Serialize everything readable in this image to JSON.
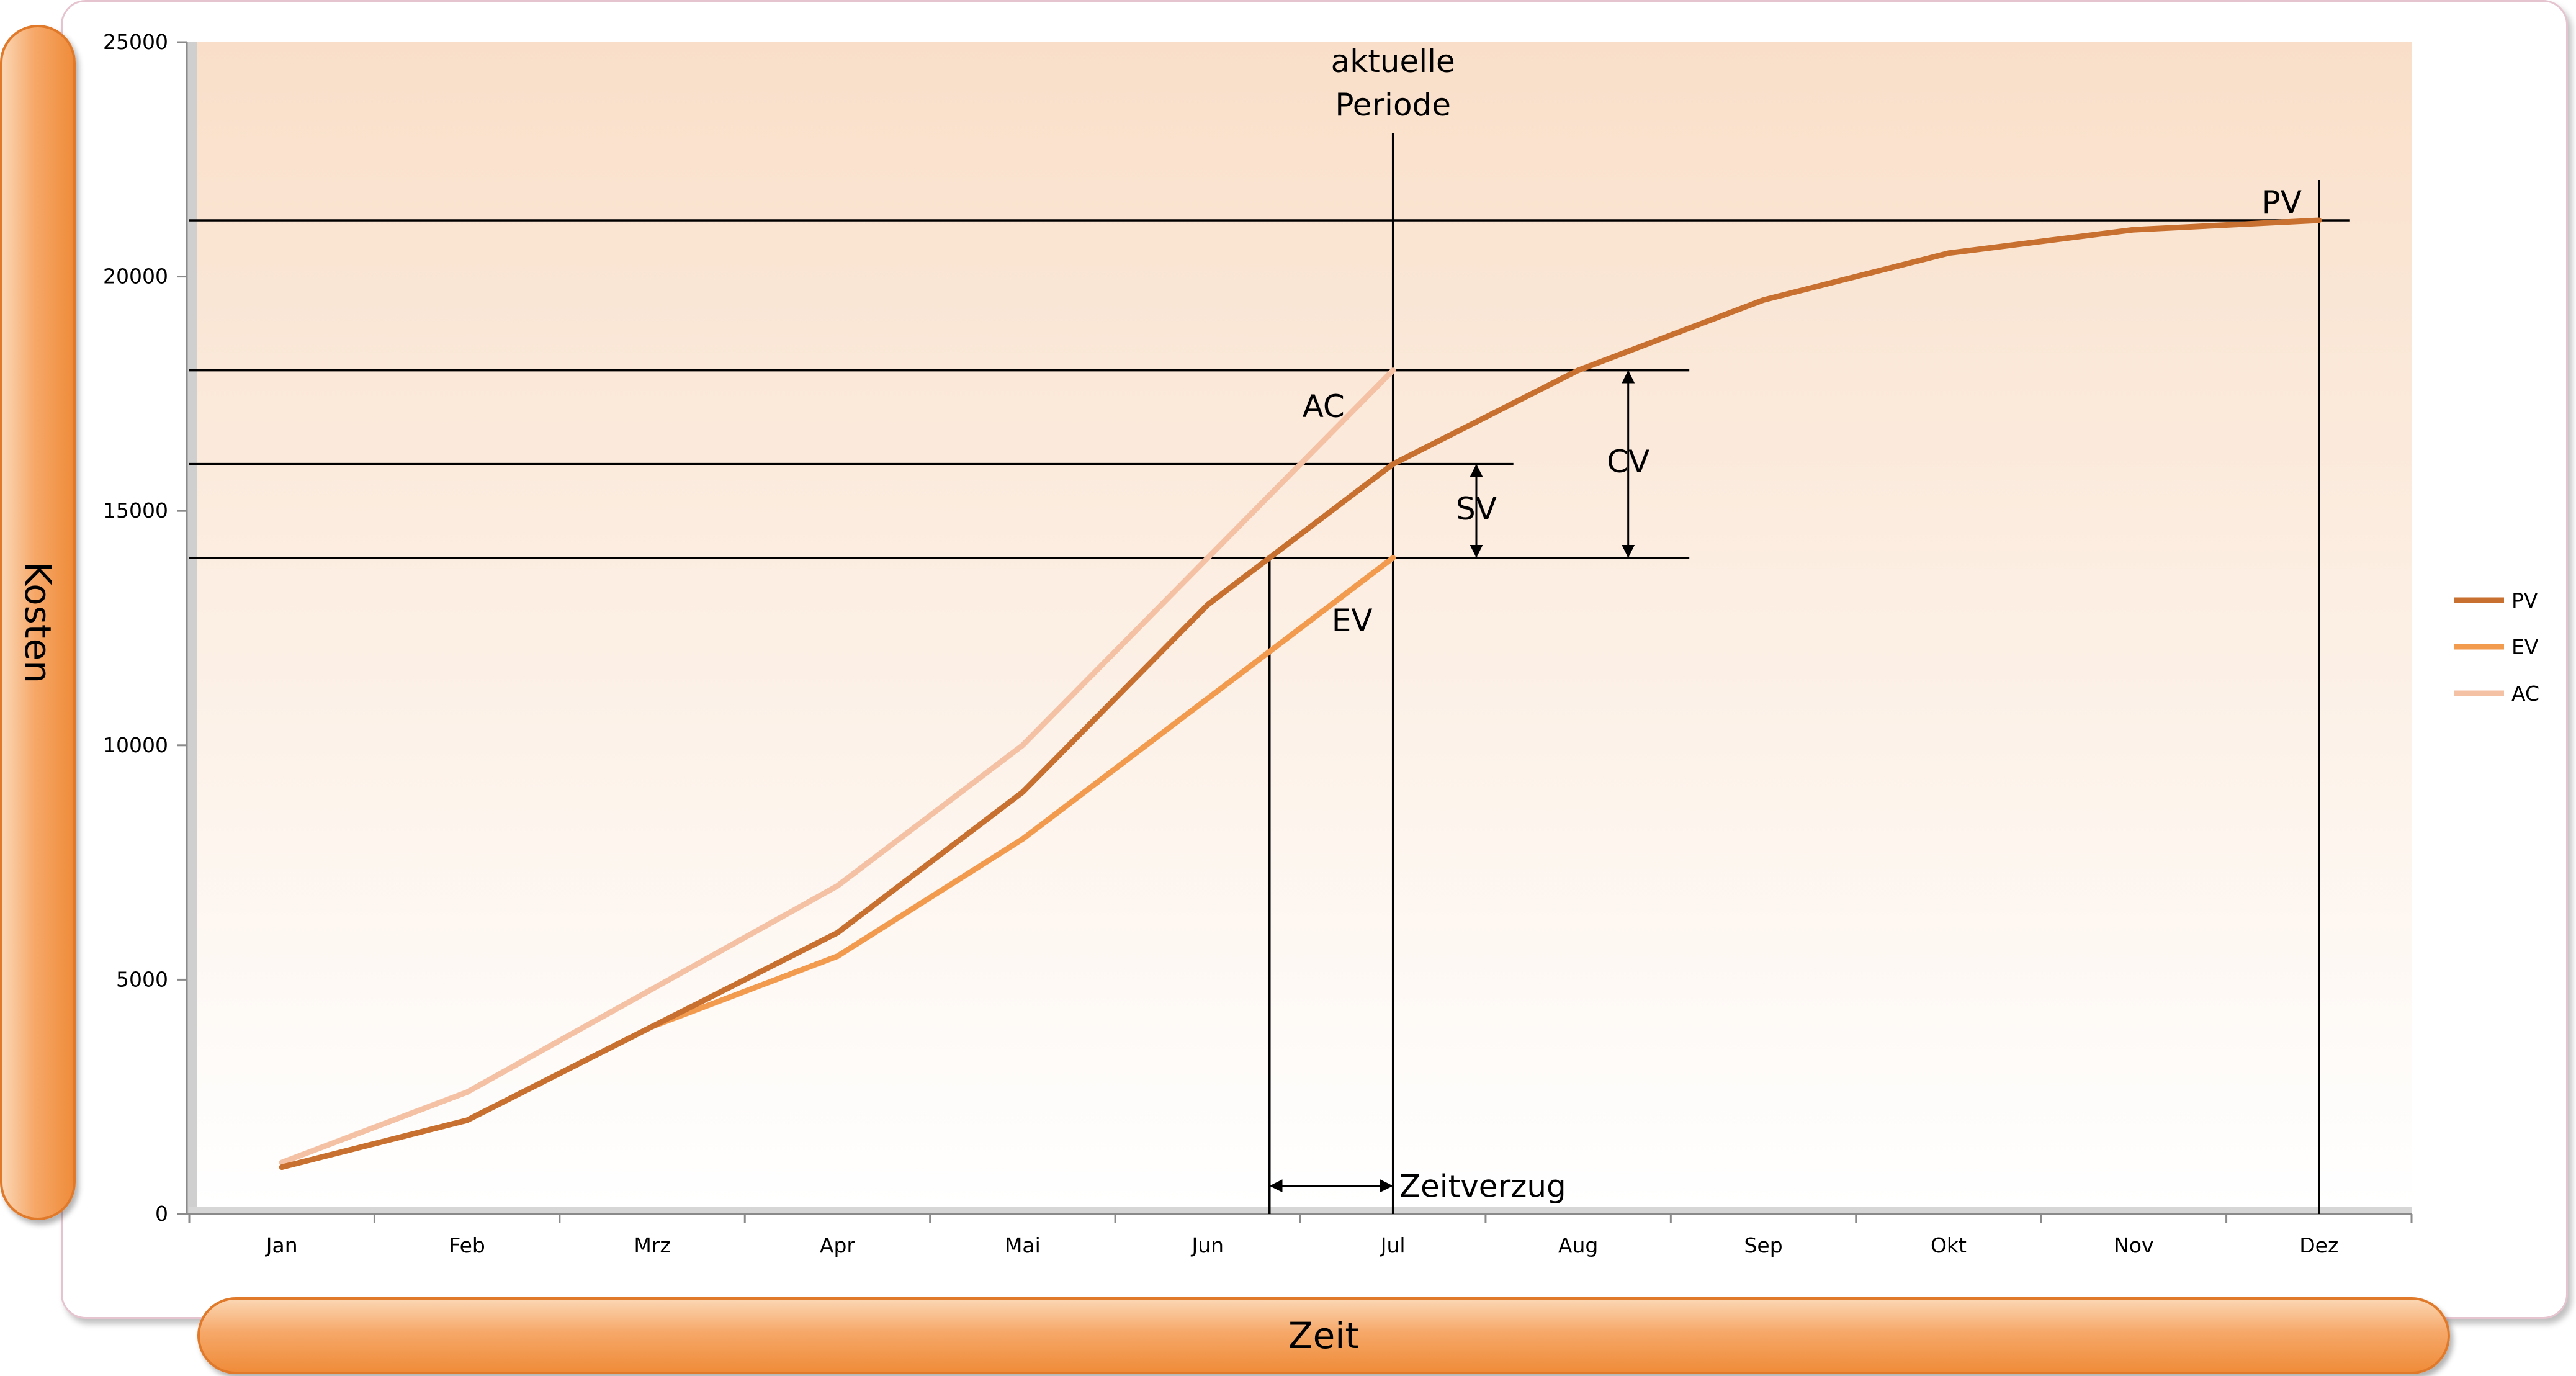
{
  "chart_data": {
    "type": "line",
    "categories": [
      "Jan",
      "Feb",
      "Mrz",
      "Apr",
      "Mai",
      "Jun",
      "Jul",
      "Aug",
      "Sep",
      "Okt",
      "Nov",
      "Dez"
    ],
    "series": [
      {
        "name": "PV",
        "color": "#c8702f",
        "values": [
          1000,
          2000,
          4000,
          6000,
          9000,
          13000,
          16000,
          18000,
          19500,
          20500,
          21000,
          21200
        ]
      },
      {
        "name": "EV",
        "color": "#f29a4e",
        "values": [
          1000,
          2000,
          4000,
          5500,
          8000,
          11000,
          14000,
          null,
          null,
          null,
          null,
          null
        ]
      },
      {
        "name": "AC",
        "color": "#f5c1a4",
        "values": [
          1100,
          2600,
          4800,
          7000,
          10000,
          14000,
          18000,
          null,
          null,
          null,
          null,
          null
        ]
      }
    ],
    "yticks": [
      0,
      5000,
      10000,
      15000,
      20000,
      25000
    ],
    "ylim": [
      0,
      25000
    ],
    "xlabel": "Zeit",
    "ylabel": "Kosten",
    "legend_position": "right",
    "grid": false,
    "annotations": {
      "current_period": "aktuelle\nPeriode",
      "pv": "PV",
      "ac": "AC",
      "ev": "EV",
      "sv": "SV",
      "cv": "CV",
      "delay": "Zeitverzug"
    }
  }
}
